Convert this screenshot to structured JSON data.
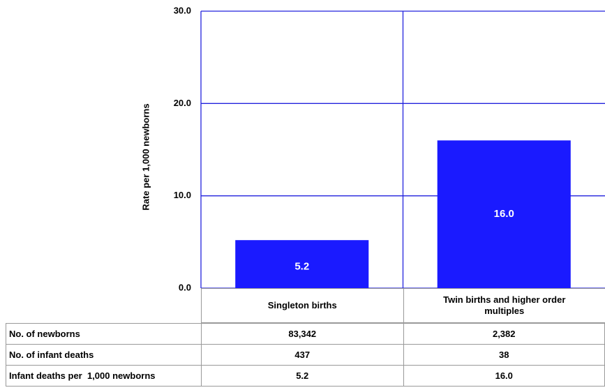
{
  "chart_data": {
    "type": "bar",
    "y_label": "Rate per 1,000 newborns",
    "categories": [
      "Singleton births",
      "Twin births and higher order multiples"
    ],
    "series": [
      {
        "color": "#1a1aff",
        "values": [
          5.2,
          16
        ],
        "value_labels": [
          "5.2",
          "16.0"
        ]
      }
    ],
    "ylim": [
      0,
      30
    ],
    "yticks": [
      {
        "value": 0,
        "label": "0.0"
      },
      {
        "value": 10,
        "label": "10.0"
      },
      {
        "value": 20,
        "label": "20.0"
      },
      {
        "value": 30,
        "label": "30.0"
      }
    ],
    "grid": true,
    "grid_color": "#2222dd",
    "table": {
      "rows": [
        [
          "No. of newborns",
          "83,342",
          "2,382"
        ],
        [
          "No. of infant deaths",
          "437",
          "38"
        ],
        [
          "Infant deaths per  1,000 newborns",
          "5.2",
          "16.0"
        ]
      ]
    }
  }
}
